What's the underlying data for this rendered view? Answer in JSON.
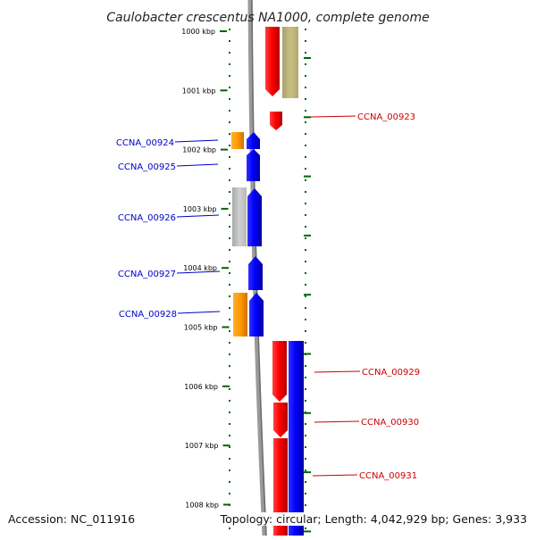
{
  "title": "Caulobacter crescentus NA1000, complete genome",
  "footer": {
    "accession": "Accession: NC_011916",
    "summary": "Topology: circular; Length: 4,042,929 bp; Genes: 3,933"
  },
  "ruler": {
    "kbp_start": 1000,
    "kbp_end": 1008,
    "labels": [
      "1000 kbp",
      "1001 kbp",
      "1002 kbp",
      "1003 kbp",
      "1004 kbp",
      "1005 kbp",
      "1006 kbp",
      "1007 kbp",
      "1008 kbp"
    ]
  },
  "genes": [
    {
      "label": "CCNA_00923",
      "strand": "forward",
      "color": "#cc0000"
    },
    {
      "label": "CCNA_00924",
      "strand": "reverse",
      "color": "#0000cc"
    },
    {
      "label": "CCNA_00925",
      "strand": "reverse",
      "color": "#0000cc"
    },
    {
      "label": "CCNA_00926",
      "strand": "reverse",
      "color": "#0000cc"
    },
    {
      "label": "CCNA_00927",
      "strand": "reverse",
      "color": "#0000cc"
    },
    {
      "label": "CCNA_00928",
      "strand": "reverse",
      "color": "#0000cc"
    },
    {
      "label": "CCNA_00929",
      "strand": "forward",
      "color": "#cc0000"
    },
    {
      "label": "CCNA_00930",
      "strand": "forward",
      "color": "#cc0000"
    },
    {
      "label": "CCNA_00931",
      "strand": "forward",
      "color": "#cc0000"
    }
  ],
  "colors": {
    "forward_cds": "#ff0000",
    "reverse_cds": "#0000ff",
    "orange_feature": "#ff9900",
    "gray_feature": "#c0c0c0",
    "olive_feature": "#c8c080",
    "backbone": "#808080",
    "tick": "#006600"
  }
}
